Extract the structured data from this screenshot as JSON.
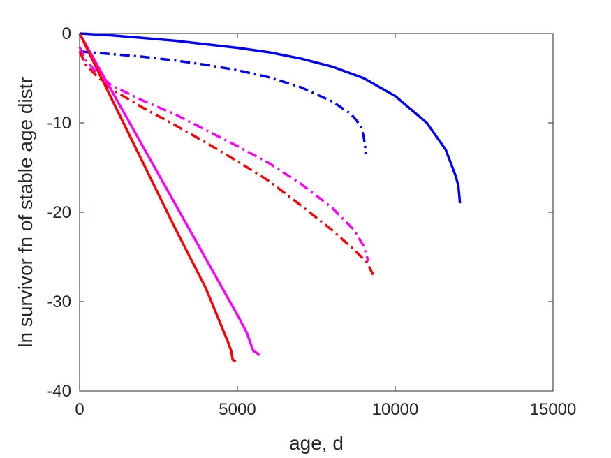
{
  "chart_data": {
    "type": "line",
    "xlabel": "age, d",
    "ylabel": "ln survivor fn of stable age distr",
    "xlim": [
      0,
      15000
    ],
    "ylim": [
      -40,
      0
    ],
    "xticks": [
      0,
      5000,
      10000,
      15000
    ],
    "yticks": [
      0,
      -10,
      -20,
      -30,
      -40
    ],
    "xtick_labels": [
      "0",
      "5000",
      "10000",
      "15000"
    ],
    "ytick_labels": [
      "0",
      "-10",
      "-20",
      "-30",
      "-40"
    ],
    "grid": false,
    "colors": {
      "blue": "#0000ff",
      "magenta": "#ff00ff",
      "red": "#ff0000",
      "axis": "#262626"
    },
    "series": [
      {
        "color": "#0000ff",
        "style": "solid",
        "points": [
          [
            0,
            0
          ],
          [
            1000,
            -0.2
          ],
          [
            2000,
            -0.5
          ],
          [
            3000,
            -0.8
          ],
          [
            4000,
            -1.2
          ],
          [
            5000,
            -1.6
          ],
          [
            6000,
            -2.1
          ],
          [
            7000,
            -2.8
          ],
          [
            8000,
            -3.7
          ],
          [
            9000,
            -5.0
          ],
          [
            10000,
            -7.0
          ],
          [
            11000,
            -10.0
          ],
          [
            11600,
            -13.0
          ],
          [
            11900,
            -15.8
          ],
          [
            12000,
            -17.0
          ],
          [
            12050,
            -19.0
          ]
        ]
      },
      {
        "color": "#0000ff",
        "style": "dashdot",
        "points": [
          [
            0,
            -2.0
          ],
          [
            300,
            -2.1
          ],
          [
            1000,
            -2.3
          ],
          [
            2000,
            -2.6
          ],
          [
            3000,
            -3.0
          ],
          [
            4000,
            -3.5
          ],
          [
            5000,
            -4.1
          ],
          [
            6000,
            -4.9
          ],
          [
            7000,
            -6.0
          ],
          [
            8000,
            -7.6
          ],
          [
            8600,
            -9.0
          ],
          [
            8900,
            -10.3
          ],
          [
            9000,
            -11.5
          ],
          [
            9050,
            -12.8
          ],
          [
            9060,
            -13.5
          ]
        ]
      },
      {
        "color": "#ff00ff",
        "style": "dashdot",
        "points": [
          [
            0,
            -1.5
          ],
          [
            200,
            -3.0
          ],
          [
            500,
            -4.2
          ],
          [
            1000,
            -5.8
          ],
          [
            2000,
            -7.5
          ],
          [
            3000,
            -9.0
          ],
          [
            4000,
            -10.8
          ],
          [
            5000,
            -12.6
          ],
          [
            6000,
            -14.5
          ],
          [
            7000,
            -16.8
          ],
          [
            8000,
            -19.5
          ],
          [
            8700,
            -22.0
          ],
          [
            9000,
            -23.8
          ],
          [
            9150,
            -25.5
          ]
        ]
      },
      {
        "color": "#ff0000",
        "style": "dashdot",
        "points": [
          [
            0,
            -2.0
          ],
          [
            200,
            -3.5
          ],
          [
            500,
            -4.6
          ],
          [
            1000,
            -6.2
          ],
          [
            2000,
            -8.3
          ],
          [
            3000,
            -10.2
          ],
          [
            4000,
            -12.2
          ],
          [
            5000,
            -14.3
          ],
          [
            6000,
            -16.5
          ],
          [
            7000,
            -19.2
          ],
          [
            8000,
            -22.0
          ],
          [
            8700,
            -24.2
          ],
          [
            9100,
            -25.6
          ],
          [
            9300,
            -27.0
          ]
        ]
      },
      {
        "color": "#ff00ff",
        "style": "solid",
        "points": [
          [
            0,
            0
          ],
          [
            1000,
            -6.3
          ],
          [
            2000,
            -12.6
          ],
          [
            3000,
            -18.9
          ],
          [
            4000,
            -25.2
          ],
          [
            5000,
            -31.5
          ],
          [
            5300,
            -33.5
          ],
          [
            5500,
            -35.5
          ],
          [
            5600,
            -35.7
          ],
          [
            5700,
            -36.0
          ]
        ]
      },
      {
        "color": "#ff0000",
        "style": "solid",
        "points": [
          [
            0,
            0
          ],
          [
            1000,
            -7.2
          ],
          [
            2000,
            -14.4
          ],
          [
            3000,
            -21.6
          ],
          [
            4000,
            -28.5
          ],
          [
            4700,
            -34.5
          ],
          [
            4800,
            -35.5
          ],
          [
            4850,
            -36.5
          ],
          [
            4950,
            -36.7
          ]
        ]
      }
    ]
  }
}
